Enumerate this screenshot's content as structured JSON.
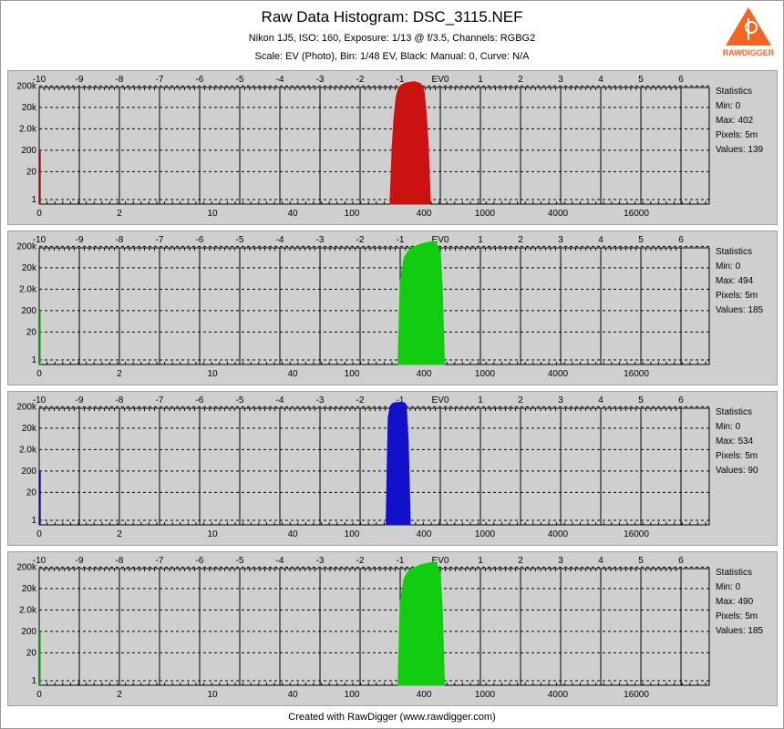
{
  "title": "Raw Data Histogram: DSC_3115.NEF",
  "subtitle1": "Nikon 1J5, ISO: 160, Exposure: 1/13 @ f/3.5, Channels: RGBG2",
  "subtitle2": "Scale: EV (Photo), Bin: 1/48 EV, Black: Manual: 0, Curve: N/A",
  "footer": "Created with RawDigger (www.rawdigger.com)",
  "logo_text": "RAWDIGGER",
  "stats_labels": {
    "title": "Statistics",
    "min": "Min:",
    "max": "Max:",
    "pixels": "Pixels:",
    "values": "Values:"
  },
  "chart_data": {
    "type": "area",
    "top_axis": {
      "label": "EV",
      "ticks": [
        "-10",
        "-9",
        "-8",
        "-7",
        "-6",
        "-5",
        "-4",
        "-3",
        "-2",
        "-1",
        "EV0",
        "1",
        "2",
        "3",
        "4",
        "5",
        "6"
      ]
    },
    "bottom_axis": {
      "ticks": [
        "0",
        "2",
        "10",
        "40",
        "100",
        "400",
        "1000",
        "4000",
        "16000"
      ]
    },
    "y_axis": {
      "scale": "log",
      "ticks": [
        "200k",
        "20k",
        "2.0k",
        "200",
        "20",
        "1"
      ]
    },
    "grid": true,
    "panels": [
      {
        "channel": "R",
        "color": "#cc1111",
        "stats": {
          "min": "0",
          "max": "402",
          "pixels": "5m",
          "values": "139"
        },
        "x": [
          -1.25,
          -1.2,
          -1.15,
          -1.1,
          -1.05,
          -1.0,
          -0.95,
          -0.9,
          -0.85,
          -0.8,
          -0.75,
          -0.7,
          -0.65,
          -0.6,
          -0.55,
          -0.5,
          -0.45,
          -0.4,
          -0.35,
          -0.3,
          -0.25
        ],
        "y": [
          1,
          300,
          8000,
          60000,
          140000,
          200000,
          230000,
          260000,
          280000,
          290000,
          300000,
          310000,
          320000,
          300000,
          280000,
          260000,
          200000,
          100000,
          10000,
          300,
          1
        ]
      },
      {
        "channel": "G",
        "color": "#11cc11",
        "stats": {
          "min": "0",
          "max": "494",
          "pixels": "5m",
          "values": "185"
        },
        "x": [
          -1.05,
          -1.0,
          -0.9,
          -0.8,
          -0.7,
          -0.6,
          -0.5,
          -0.4,
          -0.3,
          -0.2,
          -0.1,
          0.0,
          0.05,
          0.1
        ],
        "y": [
          1,
          5000,
          60000,
          120000,
          170000,
          210000,
          250000,
          280000,
          310000,
          330000,
          300000,
          100000,
          2000,
          1
        ]
      },
      {
        "channel": "B",
        "color": "#1111cc",
        "stats": {
          "min": "0",
          "max": "534",
          "pixels": "5m",
          "values": "90"
        },
        "x": [
          -1.35,
          -1.3,
          -1.25,
          -1.2,
          -1.15,
          -1.1,
          -1.05,
          -1.0,
          -0.95,
          -0.9,
          -0.85,
          -0.8,
          -0.75
        ],
        "y": [
          1,
          60000,
          200000,
          280000,
          300000,
          320000,
          310000,
          330000,
          300000,
          310000,
          250000,
          5000,
          1
        ]
      },
      {
        "channel": "G2",
        "color": "#11cc11",
        "stats": {
          "min": "0",
          "max": "490",
          "pixels": "5m",
          "values": "185"
        },
        "x": [
          -1.05,
          -1.0,
          -0.9,
          -0.8,
          -0.7,
          -0.6,
          -0.5,
          -0.4,
          -0.3,
          -0.2,
          -0.1,
          0.0,
          0.05,
          0.1
        ],
        "y": [
          1,
          5000,
          60000,
          130000,
          170000,
          210000,
          250000,
          280000,
          310000,
          330000,
          300000,
          100000,
          2000,
          1
        ]
      }
    ]
  }
}
